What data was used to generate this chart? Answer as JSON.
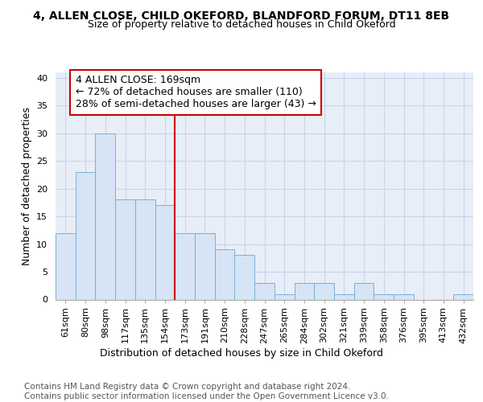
{
  "title": "4, ALLEN CLOSE, CHILD OKEFORD, BLANDFORD FORUM, DT11 8EB",
  "subtitle": "Size of property relative to detached houses in Child Okeford",
  "xlabel": "Distribution of detached houses by size in Child Okeford",
  "ylabel": "Number of detached properties",
  "categories": [
    "61sqm",
    "80sqm",
    "98sqm",
    "117sqm",
    "135sqm",
    "154sqm",
    "173sqm",
    "191sqm",
    "210sqm",
    "228sqm",
    "247sqm",
    "265sqm",
    "284sqm",
    "302sqm",
    "321sqm",
    "339sqm",
    "358sqm",
    "376sqm",
    "395sqm",
    "413sqm",
    "432sqm"
  ],
  "values": [
    12,
    23,
    30,
    18,
    18,
    17,
    12,
    12,
    9,
    8,
    3,
    1,
    3,
    3,
    1,
    3,
    1,
    1,
    0,
    0,
    1
  ],
  "bar_color": "#d6e4f5",
  "bar_edge_color": "#7bafd4",
  "vline_x_index": 6,
  "vline_color": "#cc0000",
  "annotation_text": "4 ALLEN CLOSE: 169sqm\n← 72% of detached houses are smaller (110)\n28% of semi-detached houses are larger (43) →",
  "annotation_box_color": "#ffffff",
  "annotation_box_edge_color": "#cc0000",
  "ylim": [
    0,
    41
  ],
  "yticks": [
    0,
    5,
    10,
    15,
    20,
    25,
    30,
    35,
    40
  ],
  "background_color": "#e8eef7",
  "grid_color": "#c8d4e8",
  "footer_text": "Contains HM Land Registry data © Crown copyright and database right 2024.\nContains public sector information licensed under the Open Government Licence v3.0.",
  "title_fontsize": 10,
  "subtitle_fontsize": 9,
  "axis_label_fontsize": 9,
  "tick_fontsize": 8,
  "annotation_fontsize": 9,
  "footer_fontsize": 7.5
}
